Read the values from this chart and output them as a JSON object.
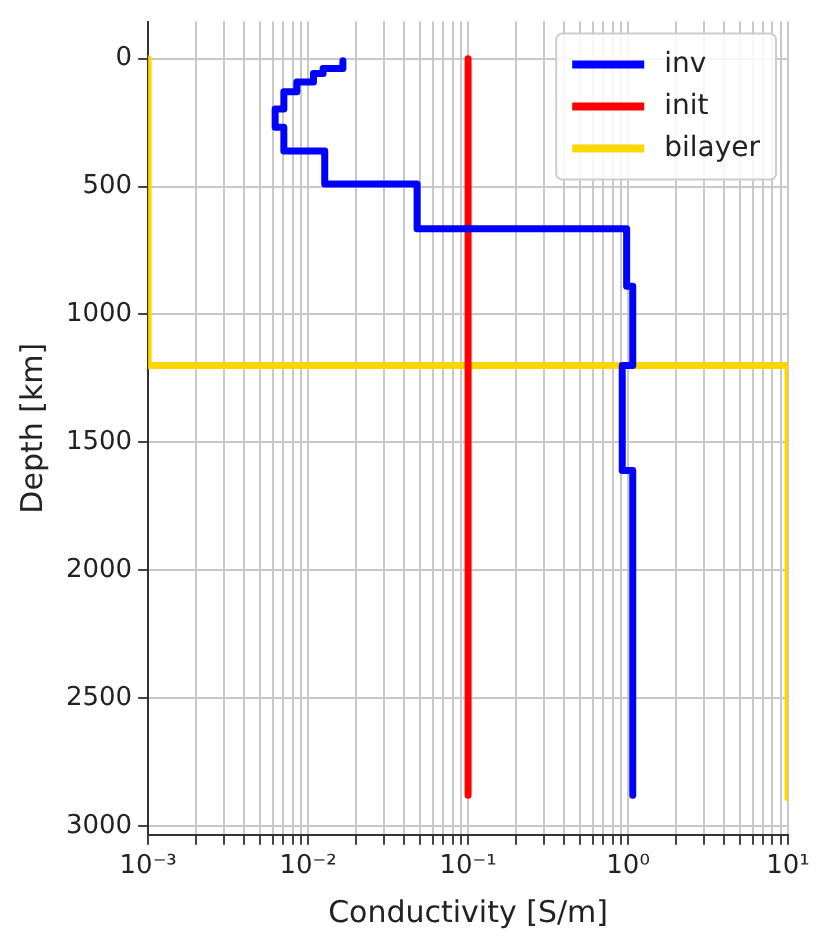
{
  "chart_data": {
    "type": "line",
    "xlabel": "Conductivity [S/m]",
    "ylabel": "Depth [km]",
    "log": "x",
    "grid": true,
    "legend": "top right",
    "marker": "none",
    "line_style": "solid",
    "xlim": [
      0.001,
      10
    ],
    "ylim": [
      3035,
      -145
    ],
    "xticks": [
      {
        "value": 0.001,
        "label": "10⁻³"
      },
      {
        "value": 0.002,
        "label": null
      },
      {
        "value": 0.003,
        "label": null
      },
      {
        "value": 0.004,
        "label": null
      },
      {
        "value": 0.005,
        "label": null
      },
      {
        "value": 0.006,
        "label": null
      },
      {
        "value": 0.007,
        "label": null
      },
      {
        "value": 0.008,
        "label": null
      },
      {
        "value": 0.009,
        "label": null
      },
      {
        "value": 0.01,
        "label": "10⁻²"
      },
      {
        "value": 0.02,
        "label": null
      },
      {
        "value": 0.03,
        "label": null
      },
      {
        "value": 0.04,
        "label": null
      },
      {
        "value": 0.05,
        "label": null
      },
      {
        "value": 0.06,
        "label": null
      },
      {
        "value": 0.07,
        "label": null
      },
      {
        "value": 0.08,
        "label": null
      },
      {
        "value": 0.09,
        "label": null
      },
      {
        "value": 0.1,
        "label": "10⁻¹"
      },
      {
        "value": 0.2,
        "label": null
      },
      {
        "value": 0.3,
        "label": null
      },
      {
        "value": 0.4,
        "label": null
      },
      {
        "value": 0.5,
        "label": null
      },
      {
        "value": 0.6,
        "label": null
      },
      {
        "value": 0.7,
        "label": null
      },
      {
        "value": 0.8,
        "label": null
      },
      {
        "value": 0.9,
        "label": null
      },
      {
        "value": 1,
        "label": "10⁰"
      },
      {
        "value": 2,
        "label": null
      },
      {
        "value": 3,
        "label": null
      },
      {
        "value": 4,
        "label": null
      },
      {
        "value": 5,
        "label": null
      },
      {
        "value": 6,
        "label": null
      },
      {
        "value": 7,
        "label": null
      },
      {
        "value": 8,
        "label": null
      },
      {
        "value": 9,
        "label": null
      },
      {
        "value": 10,
        "label": "10¹"
      }
    ],
    "yticks": [
      0,
      500,
      1000,
      1500,
      2000,
      2500,
      3000
    ],
    "series": [
      {
        "name": "inv",
        "color": "#0000ff",
        "x": [
          0.0165,
          0.0165,
          0.0124,
          0.0124,
          0.0108,
          0.0108,
          0.0085,
          0.0085,
          0.00705,
          0.00705,
          0.00622,
          0.00622,
          0.00705,
          0.00705,
          0.0127,
          0.0127,
          0.048,
          0.048,
          0.98,
          0.98,
          1.07,
          1.07,
          0.92,
          0.92,
          1.07,
          1.07
        ],
        "values": [
          8,
          38,
          38,
          58,
          58,
          91,
          91,
          129,
          129,
          197,
          197,
          268,
          268,
          361,
          361,
          490,
          490,
          665,
          665,
          890,
          890,
          1200,
          1200,
          1610,
          1610,
          2880
        ]
      },
      {
        "name": "init",
        "color": "#ff0000",
        "x": [
          0.1,
          0.1
        ],
        "values": [
          0,
          2880
        ]
      },
      {
        "name": "bilayer",
        "color": "#ffd700",
        "x": [
          0.001,
          0.001,
          10,
          10
        ],
        "values": [
          0,
          1200,
          1200,
          2890
        ]
      }
    ]
  }
}
